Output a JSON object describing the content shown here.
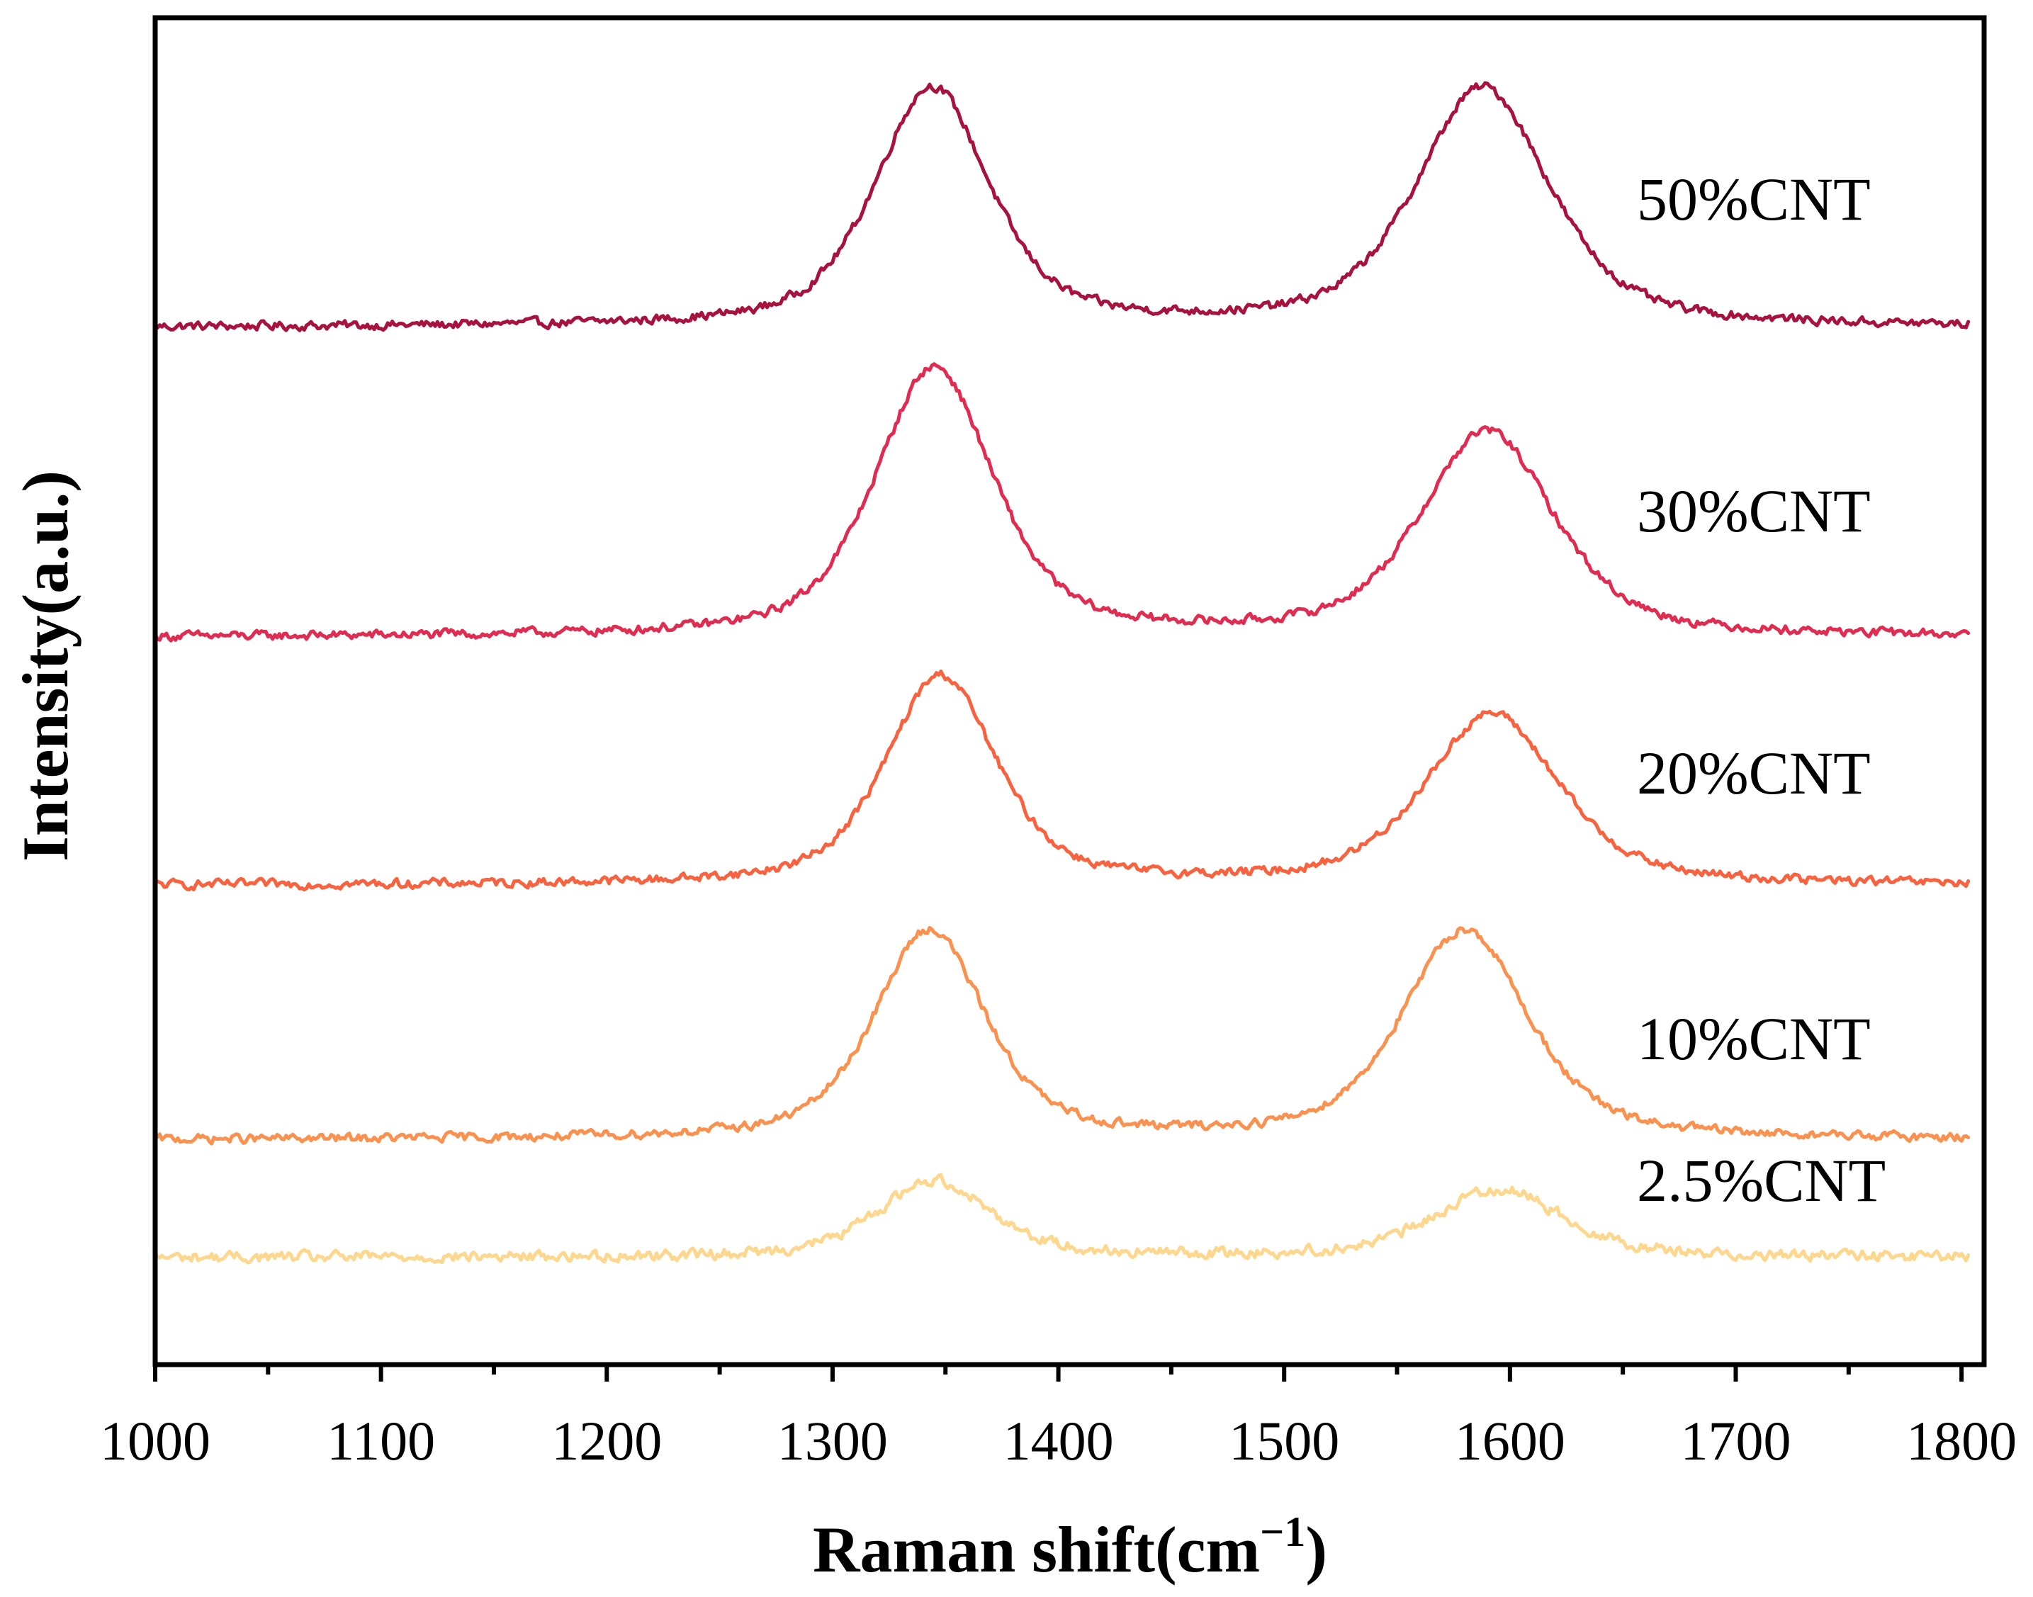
{
  "chart_data": {
    "type": "line",
    "title": "",
    "xlabel": "Raman shift(cm",
    "xlabel_sup": "−1",
    "xlabel_end": ")",
    "ylabel": "Intensity(a.u.)",
    "xlim": [
      1000,
      1810
    ],
    "ylim": [
      0,
      6.3
    ],
    "x_ticks": [
      "1000",
      "1100",
      "1200",
      "1300",
      "1400",
      "1500",
      "1600",
      "1700",
      "1800"
    ],
    "x_tick_values": [
      1000,
      1100,
      1200,
      1300,
      1400,
      1500,
      1600,
      1700,
      1800
    ],
    "x_minor_step": 50,
    "y_ticks_shown": false,
    "series": [
      {
        "name": "50%CNT",
        "color": "#A8123E",
        "baseline": 4.85,
        "noise": 0.018,
        "x_start": 1000,
        "x_end": 1803,
        "peaks": [
          {
            "center": 1344,
            "amplitude": 1.12,
            "width": 30
          },
          {
            "center": 1588,
            "amplitude": 1.12,
            "width": 35
          }
        ]
      },
      {
        "name": "30%CNT",
        "color": "#E12C51",
        "baseline": 3.4,
        "noise": 0.018,
        "x_start": 1000,
        "x_end": 1803,
        "peaks": [
          {
            "center": 1345,
            "amplitude": 1.26,
            "width": 31
          },
          {
            "center": 1590,
            "amplitude": 0.96,
            "width": 35
          }
        ]
      },
      {
        "name": "20%CNT",
        "color": "#F8623F",
        "baseline": 2.24,
        "noise": 0.018,
        "x_start": 1000,
        "x_end": 1803,
        "peaks": [
          {
            "center": 1348,
            "amplitude": 0.98,
            "width": 29
          },
          {
            "center": 1592,
            "amplitude": 0.8,
            "width": 35
          }
        ]
      },
      {
        "name": "10%CNT",
        "color": "#FA914F",
        "baseline": 1.05,
        "noise": 0.018,
        "x_start": 1000,
        "x_end": 1803,
        "peaks": [
          {
            "center": 1343,
            "amplitude": 0.98,
            "width": 29
          },
          {
            "center": 1580,
            "amplitude": 0.98,
            "width": 33
          }
        ]
      },
      {
        "name": "2.5%CNT",
        "color": "#FDD78E",
        "baseline": 0.5,
        "noise": 0.022,
        "x_start": 1000,
        "x_end": 1803,
        "peaks": [
          {
            "center": 1345,
            "amplitude": 0.36,
            "width": 30
          },
          {
            "center": 1595,
            "amplitude": 0.32,
            "width": 34
          }
        ]
      }
    ]
  }
}
